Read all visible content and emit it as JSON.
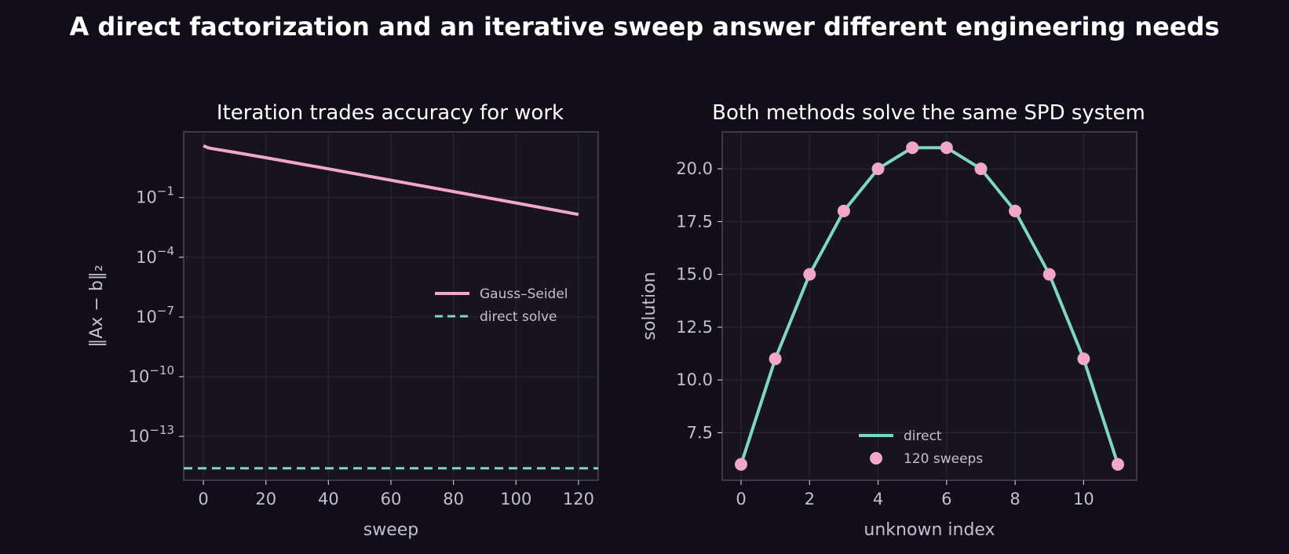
{
  "suptitle": "A direct factorization and an iterative sweep answer different engineering needs",
  "colors": {
    "background": "#110e19",
    "axes_face": "#18141f",
    "axes_edge": "#4a4560",
    "gauss_seidel": "#f2a7c9",
    "direct": "#7dd8bd",
    "text": "#c4bed4",
    "title": "#ffffff"
  },
  "chart_data": [
    {
      "type": "line",
      "title": "Iteration trades accuracy for work",
      "xlabel": "sweep",
      "ylabel": "‖Ax − b‖₂",
      "yscale": "log",
      "xlim": [
        -6.3,
        126.3
      ],
      "ylim_log10": [
        -15.2,
        2.3
      ],
      "xticks": [
        0,
        20,
        40,
        60,
        80,
        100,
        120
      ],
      "yticks_exp": [
        -1,
        -4,
        -7,
        -10,
        -13
      ],
      "ytick_base": "10",
      "grid": true,
      "legend_position": "center-right",
      "series": [
        {
          "name": "Gauss–Seidel",
          "style": "solid",
          "color": "#f2a7c9",
          "x": [
            0,
            1,
            2,
            5,
            10,
            20,
            40,
            60,
            80,
            100,
            120
          ],
          "y_log10": [
            1.6,
            1.53,
            1.48,
            1.4,
            1.27,
            1.0,
            0.44,
            -0.13,
            -0.7,
            -1.27,
            -1.85
          ]
        },
        {
          "name": "direct solve",
          "style": "dashed",
          "color": "#7dd8bd",
          "x": [
            -6.3,
            126.3
          ],
          "y_log10": [
            -14.6,
            -14.6
          ]
        }
      ]
    },
    {
      "type": "line",
      "title": "Both methods solve the same SPD system",
      "xlabel": "unknown index",
      "ylabel": "solution",
      "xlim": [
        -0.55,
        11.55
      ],
      "ylim": [
        5.25,
        21.75
      ],
      "xticks": [
        0,
        2,
        4,
        6,
        8,
        10
      ],
      "yticks": [
        7.5,
        10.0,
        12.5,
        15.0,
        17.5,
        20.0
      ],
      "ytick_labels": [
        "7.5",
        "10.0",
        "12.5",
        "15.0",
        "17.5",
        "20.0"
      ],
      "grid": true,
      "legend_position": "lower-center",
      "series": [
        {
          "name": "direct",
          "style": "line",
          "color": "#7dd8bd",
          "x": [
            0,
            1,
            2,
            3,
            4,
            5,
            6,
            7,
            8,
            9,
            10,
            11
          ],
          "y": [
            6,
            11,
            15,
            18,
            20,
            21,
            21,
            20,
            18,
            15,
            11,
            6
          ]
        },
        {
          "name": "120 sweeps",
          "style": "markers",
          "color": "#f2a7c9",
          "x": [
            0,
            1,
            2,
            3,
            4,
            5,
            6,
            7,
            8,
            9,
            10,
            11
          ],
          "y": [
            6,
            11,
            15,
            18,
            20,
            21,
            21,
            20,
            18,
            15,
            11,
            6
          ]
        }
      ]
    }
  ]
}
